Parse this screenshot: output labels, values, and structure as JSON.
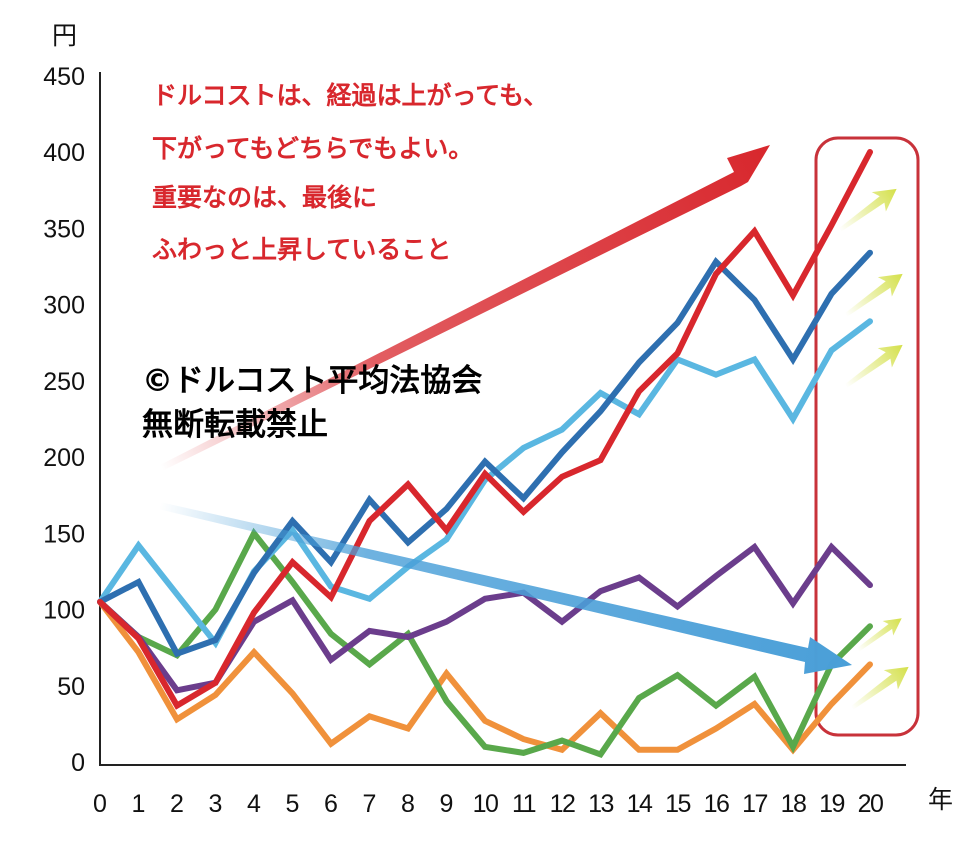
{
  "chart_data": {
    "type": "line",
    "ylabel": "円",
    "xlabel": "年",
    "ylim": [
      0,
      450
    ],
    "yticks": [
      0,
      50,
      100,
      150,
      200,
      250,
      300,
      350,
      400,
      450
    ],
    "x": [
      0,
      1,
      2,
      3,
      4,
      5,
      6,
      7,
      8,
      9,
      10,
      11,
      12,
      13,
      14,
      15,
      16,
      17,
      18,
      19,
      20
    ],
    "grid": false,
    "series": [
      {
        "color": "#f0913b",
        "values": [
          105,
          72,
          28,
          44,
          72,
          45,
          12,
          30,
          22,
          58,
          27,
          15,
          8,
          32,
          8,
          8,
          22,
          38,
          8,
          38,
          64
        ]
      },
      {
        "color": "#59a84b",
        "values": [
          105,
          82,
          70,
          100,
          150,
          118,
          84,
          64,
          84,
          40,
          10,
          6,
          14,
          5,
          42,
          57,
          37,
          56,
          10,
          64,
          89
        ]
      },
      {
        "color": "#6b3d8c",
        "values": [
          105,
          82,
          47,
          52,
          92,
          106,
          67,
          86,
          82,
          92,
          107,
          111,
          92,
          112,
          121,
          102,
          122,
          141,
          104,
          141,
          116
        ]
      },
      {
        "color": "#5ab7e1",
        "values": [
          105,
          142,
          110,
          78,
          125,
          152,
          115,
          107,
          128,
          146,
          185,
          206,
          218,
          242,
          228,
          264,
          254,
          264,
          225,
          270,
          289
        ]
      },
      {
        "color": "#2e6fb0",
        "values": [
          105,
          118,
          71,
          80,
          124,
          158,
          131,
          172,
          144,
          166,
          197,
          173,
          203,
          230,
          262,
          288,
          328,
          303,
          264,
          307,
          334
        ]
      },
      {
        "color": "#d8272d",
        "values": [
          105,
          81,
          37,
          52,
          98,
          131,
          108,
          158,
          182,
          152,
          189,
          164,
          187,
          198,
          243,
          268,
          320,
          348,
          306,
          352,
          400
        ]
      }
    ],
    "annotations": [
      "ドルコストは、経過は上がっても、",
      "下がってもどちらでもよい。",
      "重要なのは、最後に",
      "ふわっと上昇していること"
    ],
    "watermark": [
      "©ドルコスト平均法協会",
      "無断転載禁止"
    ],
    "colors": {
      "note": "#d8272d",
      "big_up_arrow": "#d8272d",
      "big_down_arrow": "#4a9fd8",
      "small_arrows": "#d4e04a",
      "highlight_box": "#c8323a"
    }
  }
}
